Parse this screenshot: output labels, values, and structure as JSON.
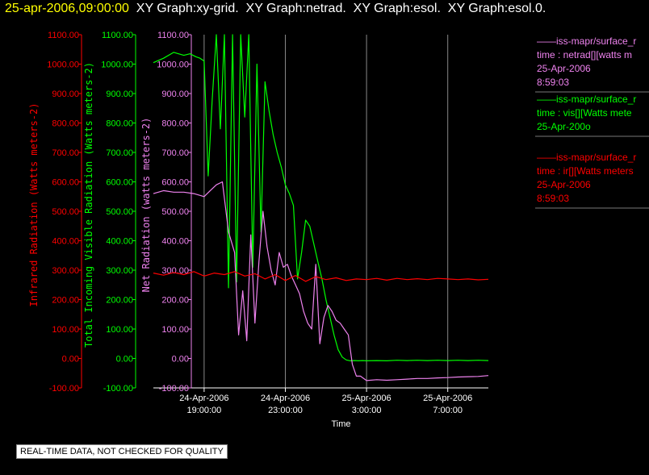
{
  "header": {
    "timestamp": "25-apr-2006,09:00:00",
    "graphs": "  XY Graph:xy-grid.  XY Graph:netrad.  XY Graph:esol.  XY Graph:esol.0."
  },
  "footer_note": "REAL-TIME DATA, NOT CHECKED FOR QUALITY",
  "colors": {
    "infrared": "#ff0000",
    "visible": "#00ff00",
    "net": "#ee82ee",
    "grid": "#888888",
    "axis": "#ffffff"
  },
  "legend": [
    {
      "lines": [
        "——iss-mapr/surface_r",
        "time : netrad[][watts m",
        "25-Apr-2006",
        "8:59:03"
      ],
      "color": "#ee82ee"
    },
    {
      "lines": [
        "——iss-mapr/surface_r",
        "time : vis[][Watts mete",
        "25-Apr-200o"
      ],
      "color": "#00ff00"
    },
    {
      "lines": [
        "——iss-mapr/surface_r",
        "time : ir[][Watts meters",
        "25-Apr-2006",
        "8:59:03"
      ],
      "color": "#ff0000"
    }
  ],
  "chart_data": {
    "type": "line",
    "xlabel": "Time",
    "x_ticks": [
      {
        "t": 19,
        "label1": "24-Apr-2006",
        "label2": "19:00:00"
      },
      {
        "t": 23,
        "label1": "24-Apr-2006",
        "label2": "23:00:00"
      },
      {
        "t": 27,
        "label1": "25-Apr-2006",
        "label2": "3:00:00"
      },
      {
        "t": 31,
        "label1": "25-Apr-2006",
        "label2": "7:00:00"
      }
    ],
    "xlim_hours_since_apr24_00": [
      16.5,
      33.0
    ],
    "y_axes": [
      {
        "id": "ir",
        "label": "Infrared Radiation (Watts meters-2)",
        "color": "#ff0000",
        "ylim": [
          -100,
          1100
        ],
        "ticks": [
          "1100.00",
          "1000.00",
          "900.00",
          "800.00",
          "700.00",
          "600.00",
          "500.00",
          "400.00",
          "300.00",
          "200.00",
          "100.00",
          "0.00",
          "-100.00"
        ]
      },
      {
        "id": "vis",
        "label": "Total Incoming Visible Radiation (Watts meters-2)",
        "color": "#00ff00",
        "ylim": [
          -100,
          1100
        ],
        "ticks": [
          "1100.00",
          "1000.00",
          "900.00",
          "800.00",
          "700.00",
          "600.00",
          "500.00",
          "400.00",
          "300.00",
          "200.00",
          "100.00",
          "0.00",
          "-100.00"
        ]
      },
      {
        "id": "net",
        "label": "Net Radiation (watts meters-2)",
        "color": "#ee82ee",
        "ylim": [
          -100,
          1100
        ],
        "ticks": [
          "1100.00",
          "1000.00",
          "900.00",
          "800.00",
          "700.00",
          "600.00",
          "500.00",
          "400.00",
          "300.00",
          "200.00",
          "100.00",
          "0.00",
          "-100.00"
        ]
      }
    ],
    "series": [
      {
        "axis": "vis",
        "color": "#00ff00",
        "x": [
          16.5,
          17.0,
          17.5,
          18.0,
          18.3,
          18.6,
          18.8,
          19.0,
          19.2,
          19.4,
          19.6,
          19.8,
          20.0,
          20.2,
          20.4,
          20.6,
          20.8,
          21.0,
          21.2,
          21.4,
          21.6,
          21.8,
          22.0,
          22.2,
          22.4,
          22.6,
          22.8,
          23.0,
          23.2,
          23.4,
          23.6,
          23.8,
          24.0,
          24.2,
          24.4,
          24.6,
          24.8,
          25.0,
          25.2,
          25.4,
          25.6,
          25.8,
          26.0,
          26.2,
          26.4,
          26.6,
          26.8,
          27.0,
          27.5,
          28.0,
          28.5,
          29.0,
          29.5,
          30.0,
          30.5,
          31.0,
          31.5,
          32.0,
          32.5,
          33.0
        ],
        "y": [
          1005,
          1020,
          1040,
          1030,
          1035,
          1025,
          1020,
          1010,
          620,
          880,
          1100,
          780,
          1100,
          240,
          1100,
          260,
          1100,
          820,
          1100,
          310,
          1000,
          430,
          940,
          840,
          760,
          700,
          650,
          590,
          560,
          520,
          270,
          360,
          470,
          450,
          390,
          330,
          270,
          200,
          140,
          80,
          30,
          5,
          -5,
          -8,
          -7,
          -8,
          -7,
          -8,
          -7,
          -8,
          -6,
          -7,
          -6,
          -7,
          -6,
          -7,
          -6,
          -7,
          -6,
          -7
        ]
      },
      {
        "axis": "net",
        "color": "#ee82ee",
        "x": [
          16.5,
          17.0,
          17.5,
          18.0,
          18.5,
          19.0,
          19.3,
          19.6,
          19.9,
          20.2,
          20.5,
          20.7,
          20.9,
          21.1,
          21.3,
          21.5,
          21.7,
          21.9,
          22.1,
          22.3,
          22.5,
          22.7,
          22.9,
          23.1,
          23.3,
          23.5,
          23.7,
          23.9,
          24.1,
          24.3,
          24.5,
          24.7,
          24.9,
          25.1,
          25.3,
          25.5,
          25.7,
          25.9,
          26.1,
          26.3,
          26.5,
          26.7,
          27.0,
          27.5,
          28.0,
          28.5,
          29.0,
          29.5,
          30.0,
          30.5,
          31.0,
          31.5,
          32.0,
          32.5,
          33.0
        ],
        "y": [
          560,
          570,
          565,
          565,
          560,
          550,
          570,
          590,
          600,
          430,
          360,
          80,
          230,
          60,
          420,
          120,
          330,
          500,
          380,
          300,
          250,
          360,
          310,
          320,
          280,
          250,
          220,
          160,
          120,
          100,
          320,
          50,
          140,
          180,
          160,
          130,
          120,
          100,
          80,
          -20,
          -60,
          -60,
          -75,
          -72,
          -74,
          -72,
          -70,
          -68,
          -68,
          -66,
          -65,
          -63,
          -62,
          -61,
          -58
        ]
      },
      {
        "axis": "ir",
        "color": "#ff0000",
        "x": [
          16.5,
          17.0,
          17.5,
          18.0,
          18.5,
          19.0,
          19.5,
          20.0,
          20.5,
          21.0,
          21.5,
          22.0,
          22.5,
          23.0,
          23.5,
          24.0,
          24.5,
          25.0,
          25.5,
          26.0,
          26.5,
          27.0,
          27.5,
          28.0,
          28.5,
          29.0,
          29.5,
          30.0,
          30.5,
          31.0,
          31.5,
          32.0,
          32.5,
          33.0
        ],
        "y": [
          290,
          283,
          292,
          285,
          295,
          280,
          290,
          285,
          295,
          280,
          288,
          270,
          285,
          265,
          282,
          262,
          278,
          268,
          274,
          265,
          270,
          268,
          272,
          266,
          272,
          268,
          271,
          268,
          272,
          270,
          268,
          270,
          267,
          269
        ]
      }
    ]
  }
}
